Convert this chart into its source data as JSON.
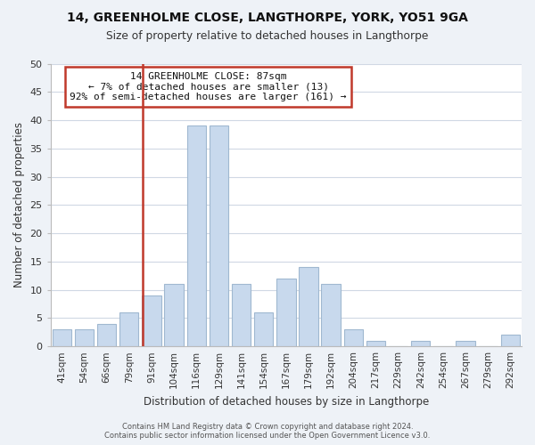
{
  "title": "14, GREENHOLME CLOSE, LANGTHORPE, YORK, YO51 9GA",
  "subtitle": "Size of property relative to detached houses in Langthorpe",
  "xlabel": "Distribution of detached houses by size in Langthorpe",
  "ylabel": "Number of detached properties",
  "bar_labels": [
    "41sqm",
    "54sqm",
    "66sqm",
    "79sqm",
    "91sqm",
    "104sqm",
    "116sqm",
    "129sqm",
    "141sqm",
    "154sqm",
    "167sqm",
    "179sqm",
    "192sqm",
    "204sqm",
    "217sqm",
    "229sqm",
    "242sqm",
    "254sqm",
    "267sqm",
    "279sqm",
    "292sqm"
  ],
  "bar_values": [
    3,
    3,
    4,
    6,
    9,
    11,
    39,
    39,
    11,
    6,
    12,
    14,
    11,
    3,
    1,
    0,
    1,
    0,
    1,
    0,
    2
  ],
  "bar_color": "#c8d9ed",
  "bar_edge_color": "#a0b8d0",
  "highlight_bar_index": 4,
  "vline_color": "#c0392b",
  "vline_x": 3.6,
  "annotation_title": "14 GREENHOLME CLOSE: 87sqm",
  "annotation_line1": "← 7% of detached houses are smaller (13)",
  "annotation_line2": "92% of semi-detached houses are larger (161) →",
  "annotation_box_color": "#ffffff",
  "annotation_box_edge": "#c0392b",
  "ylim": [
    0,
    50
  ],
  "yticks": [
    0,
    5,
    10,
    15,
    20,
    25,
    30,
    35,
    40,
    45,
    50
  ],
  "footer_line1": "Contains HM Land Registry data © Crown copyright and database right 2024.",
  "footer_line2": "Contains public sector information licensed under the Open Government Licence v3.0.",
  "bg_color": "#eef2f7",
  "plot_bg_color": "#ffffff",
  "grid_color": "#d0d8e4"
}
